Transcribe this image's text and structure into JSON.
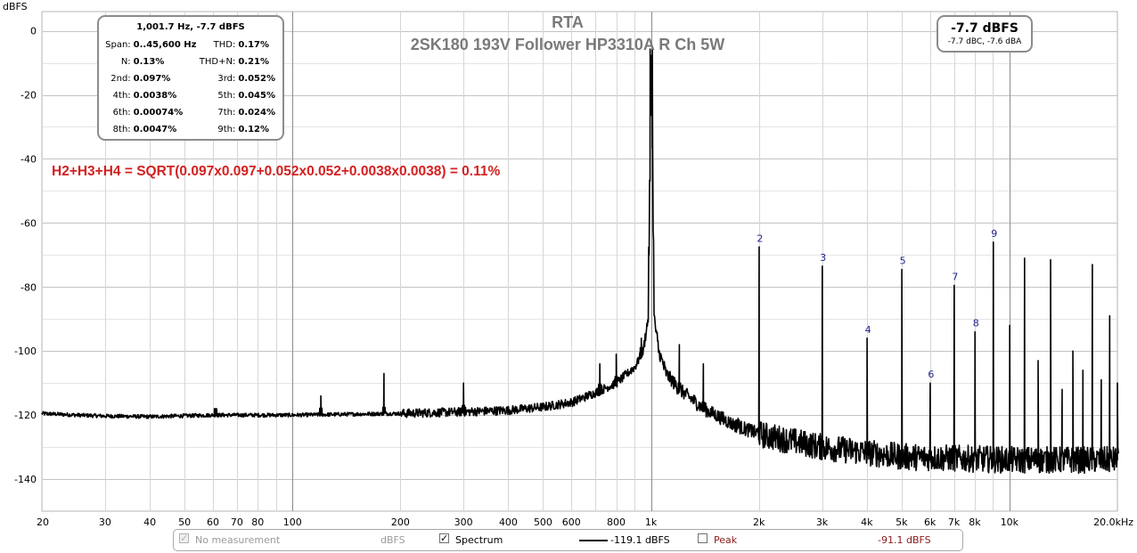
{
  "chart_data": {
    "type": "line",
    "title": "RTA",
    "subtitle": "2SK180 193V Follower HP3310A R Ch 5W",
    "ylabel": "dBFS",
    "xlabel": "",
    "x_scale": "log",
    "xlim": [
      20,
      20000
    ],
    "ylim": [
      -150,
      6
    ],
    "x_ticks": [
      {
        "v": 20,
        "label": "20"
      },
      {
        "v": 30,
        "label": "30"
      },
      {
        "v": 40,
        "label": "40"
      },
      {
        "v": 50,
        "label": "50"
      },
      {
        "v": 60,
        "label": "60"
      },
      {
        "v": 70,
        "label": "70"
      },
      {
        "v": 80,
        "label": "80"
      },
      {
        "v": 100,
        "label": "100"
      },
      {
        "v": 200,
        "label": "200"
      },
      {
        "v": 300,
        "label": "300"
      },
      {
        "v": 400,
        "label": "400"
      },
      {
        "v": 500,
        "label": "500"
      },
      {
        "v": 600,
        "label": "600"
      },
      {
        "v": 800,
        "label": "800"
      },
      {
        "v": 1000,
        "label": "1k"
      },
      {
        "v": 2000,
        "label": "2k"
      },
      {
        "v": 3000,
        "label": "3k"
      },
      {
        "v": 4000,
        "label": "4k"
      },
      {
        "v": 5000,
        "label": "5k"
      },
      {
        "v": 6000,
        "label": "6k"
      },
      {
        "v": 7000,
        "label": "7k"
      },
      {
        "v": 8000,
        "label": "8k"
      },
      {
        "v": 10000,
        "label": "10k"
      },
      {
        "v": 20000,
        "label": "20.0kHz"
      }
    ],
    "y_ticks": [
      {
        "v": 0,
        "label": "0"
      },
      {
        "v": -20,
        "label": "-20"
      },
      {
        "v": -40,
        "label": "-40"
      },
      {
        "v": -60,
        "label": "-60"
      },
      {
        "v": -80,
        "label": "-80"
      },
      {
        "v": -100,
        "label": "-100"
      },
      {
        "v": -120,
        "label": "-120"
      },
      {
        "v": -140,
        "label": "-140"
      }
    ],
    "grid": true,
    "series": [
      {
        "name": "Spectrum",
        "color": "#000000",
        "fundamental": {
          "x": 1001.7,
          "y": -7.7
        },
        "floor": [
          [
            20,
            -119.5
          ],
          [
            25,
            -120
          ],
          [
            30,
            -120.3
          ],
          [
            40,
            -120.5
          ],
          [
            60,
            -120
          ],
          [
            100,
            -120
          ],
          [
            150,
            -119.7
          ],
          [
            200,
            -119.5
          ],
          [
            300,
            -119
          ],
          [
            400,
            -118.5
          ],
          [
            500,
            -117.5
          ],
          [
            600,
            -116
          ],
          [
            700,
            -113
          ],
          [
            800,
            -110
          ],
          [
            900,
            -105
          ],
          [
            950,
            -100
          ],
          [
            980,
            -90
          ],
          [
            1001.7,
            -7.7
          ],
          [
            1020,
            -90
          ],
          [
            1050,
            -100
          ],
          [
            1100,
            -107
          ],
          [
            1200,
            -112
          ],
          [
            1400,
            -118
          ],
          [
            1700,
            -123
          ],
          [
            2000,
            -126
          ],
          [
            3000,
            -130
          ],
          [
            5000,
            -133
          ],
          [
            10000,
            -134
          ],
          [
            20000,
            -134
          ]
        ],
        "peaks": [
          [
            61,
            -118
          ],
          [
            120,
            -114
          ],
          [
            180,
            -107
          ],
          [
            300,
            -110
          ],
          [
            720,
            -104
          ],
          [
            800,
            -101
          ],
          [
            940,
            -96
          ],
          [
            1200,
            -98
          ],
          [
            1400,
            -104
          ],
          [
            1580,
            -121
          ],
          [
            1750,
            -121
          ],
          [
            1900,
            -123
          ],
          [
            2003,
            -67.5
          ],
          [
            3005,
            -73.5
          ],
          [
            4007,
            -96
          ],
          [
            5009,
            -74.5
          ],
          [
            6010,
            -110
          ],
          [
            7012,
            -79.5
          ],
          [
            8014,
            -94
          ],
          [
            9015,
            -66
          ],
          [
            10017,
            -92
          ],
          [
            11019,
            -71
          ],
          [
            12020,
            -103
          ],
          [
            13022,
            -71.5
          ],
          [
            14024,
            -112
          ],
          [
            15026,
            -100
          ],
          [
            16027,
            -106
          ],
          [
            17029,
            -73
          ],
          [
            18031,
            -109
          ],
          [
            19033,
            -89
          ],
          [
            20000,
            -110
          ]
        ]
      }
    ],
    "harmonic_labels": [
      {
        "n": "2",
        "x": 2003,
        "y": -67.5
      },
      {
        "n": "3",
        "x": 3005,
        "y": -73.5
      },
      {
        "n": "4",
        "x": 4007,
        "y": -96
      },
      {
        "n": "5",
        "x": 5009,
        "y": -74.5
      },
      {
        "n": "6",
        "x": 6010,
        "y": -110
      },
      {
        "n": "7",
        "x": 7012,
        "y": -79.5
      },
      {
        "n": "8",
        "x": 8014,
        "y": -94
      },
      {
        "n": "9",
        "x": 9015,
        "y": -66
      }
    ],
    "annotation": "H2+H3+H4 = SQRT(0.097x0.097+0.052x0.052+0.0038x0.0038) = 0.11%",
    "annotation_color": "#d42020",
    "harmonic_label_color": "#1f1f8c"
  },
  "distortion": {
    "header": "1,001.7 Hz, -7.7 dBFS",
    "rows": [
      [
        {
          "label": "Span:",
          "value": "0..45,600 Hz"
        },
        {
          "label": "THD:",
          "value": "0.17%"
        }
      ],
      [
        {
          "label": "N:",
          "value": "0.13%"
        },
        {
          "label": "THD+N:",
          "value": "0.21%"
        }
      ],
      [
        {
          "label": "2nd:",
          "value": "0.097%"
        },
        {
          "label": "3rd:",
          "value": "0.052%"
        }
      ],
      [
        {
          "label": "4th:",
          "value": "0.0038%"
        },
        {
          "label": "5th:",
          "value": "0.045%"
        }
      ],
      [
        {
          "label": "6th:",
          "value": "0.00074%"
        },
        {
          "label": "7th:",
          "value": "0.024%"
        }
      ],
      [
        {
          "label": "8th:",
          "value": "0.0047%"
        },
        {
          "label": "9th:",
          "value": "0.12%"
        }
      ]
    ]
  },
  "level": {
    "main": "-7.7 dBFS",
    "sub": "-7.7 dBC, -7.6 dBA"
  },
  "legend": {
    "no_measurement": "No measurement",
    "no_measurement_unit": "dBFS",
    "spectrum_label": "Spectrum",
    "spectrum_value": "-119.1 dBFS",
    "peak_label": "Peak",
    "peak_value": "-91.1 dBFS",
    "peak_color": "#8b1a1a"
  }
}
